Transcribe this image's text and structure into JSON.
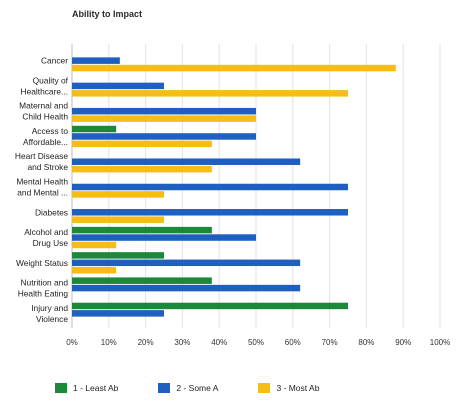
{
  "colors": {
    "least": "#1a8a3a",
    "some": "#1f5fbf",
    "most": "#f5bd16"
  },
  "chart_data": {
    "type": "bar",
    "orientation": "horizontal",
    "title": "Ability to Impact",
    "categories": [
      [
        "Cancer"
      ],
      [
        "Quality of",
        "Healthcare..."
      ],
      [
        "Maternal and",
        "Child Health"
      ],
      [
        "Access to",
        "Affordable..."
      ],
      [
        "Heart Disease",
        "and Stroke"
      ],
      [
        "Mental Health",
        "and Mental ..."
      ],
      [
        "Diabetes"
      ],
      [
        "Alcohol and",
        "Drug Use"
      ],
      [
        "Weight Status"
      ],
      [
        "Nutrition and",
        "Health Eating"
      ],
      [
        "Injury and",
        "Violence"
      ]
    ],
    "series": [
      {
        "name": "1 - Least Ab",
        "color": "#1a8a3a",
        "values": [
          0,
          0,
          0,
          12,
          0,
          0,
          0,
          38,
          25,
          38,
          75
        ]
      },
      {
        "name": "2 - Some A",
        "color": "#1f5fbf",
        "values": [
          13,
          25,
          50,
          50,
          62,
          75,
          75,
          50,
          62,
          62,
          25
        ]
      },
      {
        "name": "3 - Most Ab",
        "color": "#f5bd16",
        "values": [
          88,
          75,
          50,
          38,
          38,
          25,
          25,
          12,
          12,
          0,
          0
        ]
      }
    ],
    "xlim": [
      0,
      100
    ],
    "x_ticks": [
      "0%",
      "10%",
      "20%",
      "30%",
      "40%",
      "50%",
      "60%",
      "70%",
      "80%",
      "90%",
      "100%"
    ],
    "legend": "bottom"
  }
}
